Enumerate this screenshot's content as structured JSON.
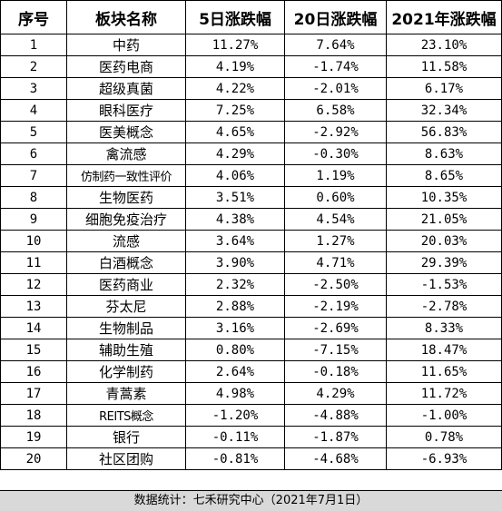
{
  "table": {
    "headers": [
      "序号",
      "板块名称",
      "5日涨跌幅",
      "20日涨跌幅",
      "2021年涨跌幅"
    ],
    "rows": [
      [
        "1",
        "中药",
        "11.27%",
        "7.64%",
        "23.10%"
      ],
      [
        "2",
        "医药电商",
        "4.19%",
        "-1.74%",
        "11.58%"
      ],
      [
        "3",
        "超级真菌",
        "4.22%",
        "-2.01%",
        "6.17%"
      ],
      [
        "4",
        "眼科医疗",
        "7.25%",
        "6.58%",
        "32.34%"
      ],
      [
        "5",
        "医美概念",
        "4.65%",
        "-2.92%",
        "56.83%"
      ],
      [
        "6",
        "禽流感",
        "4.29%",
        "-0.30%",
        "8.63%"
      ],
      [
        "7",
        "仿制药一致性评价",
        "4.06%",
        "1.19%",
        "8.65%"
      ],
      [
        "8",
        "生物医药",
        "3.51%",
        "0.60%",
        "10.35%"
      ],
      [
        "9",
        "细胞免疫治疗",
        "4.38%",
        "4.54%",
        "21.05%"
      ],
      [
        "10",
        "流感",
        "3.64%",
        "1.27%",
        "20.03%"
      ],
      [
        "11",
        "白酒概念",
        "3.90%",
        "4.71%",
        "29.39%"
      ],
      [
        "12",
        "医药商业",
        "2.32%",
        "-2.50%",
        "-1.53%"
      ],
      [
        "13",
        "芬太尼",
        "2.88%",
        "-2.19%",
        "-2.78%"
      ],
      [
        "14",
        "生物制品",
        "3.16%",
        "-2.69%",
        "8.33%"
      ],
      [
        "15",
        "辅助生殖",
        "0.80%",
        "-7.15%",
        "18.47%"
      ],
      [
        "16",
        "化学制药",
        "2.64%",
        "-0.18%",
        "11.65%"
      ],
      [
        "17",
        "青蒿素",
        "4.98%",
        "4.29%",
        "11.72%"
      ],
      [
        "18",
        "REITS概念",
        "-1.20%",
        "-4.88%",
        "-1.00%"
      ],
      [
        "19",
        "银行",
        "-0.11%",
        "-1.87%",
        "0.78%"
      ],
      [
        "20",
        "社区团购",
        "-0.81%",
        "-4.68%",
        "-6.93%"
      ]
    ]
  },
  "footer": {
    "text": "数据统计：七禾研究中心（2021年7月1日）"
  }
}
